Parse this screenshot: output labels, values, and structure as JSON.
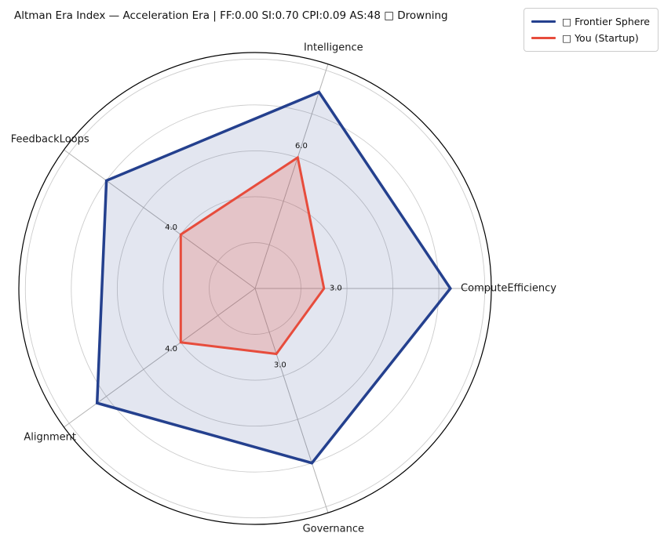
{
  "title": "Altman Era Index — Acceleration Era | FF:0.00 SI:0.70 CPI:0.09 AS:48 □ Drowning",
  "legend": {
    "items": [
      {
        "label": "□ Frontier Sphere",
        "color": "#24408e"
      },
      {
        "label": "□ You (Startup)",
        "color": "#e74c3c"
      }
    ]
  },
  "chart_data": {
    "type": "radar",
    "title": "Altman Era Index — Acceleration Era | FF:0.00 SI:0.70 CPI:0.09 AS:48 □ Drowning",
    "categories": [
      "Intelligence",
      "ComputeEfficiency",
      "Governance",
      "Alignment",
      "FeedbackLoops"
    ],
    "series": [
      {
        "name": "□ Frontier Sphere",
        "values": [
          9.0,
          8.5,
          8.0,
          8.5,
          8.0
        ],
        "color": "#24408e",
        "fill_alpha": 0.13,
        "line_width": 3.5,
        "point_labels": null
      },
      {
        "name": "□ You (Startup)",
        "values": [
          6.0,
          3.0,
          3.0,
          4.0,
          4.0
        ],
        "color": "#e74c3c",
        "fill_alpha": 0.22,
        "line_width": 3.0,
        "point_labels": [
          "6.0",
          "3.0",
          "3.0",
          "4.0",
          "4.0"
        ]
      }
    ],
    "r_ticks": [
      2,
      4,
      6,
      8,
      10
    ],
    "r_max": 10.3,
    "start_angle_deg": 72,
    "direction": "clockwise",
    "grid": true,
    "legend_position": "upper right"
  }
}
